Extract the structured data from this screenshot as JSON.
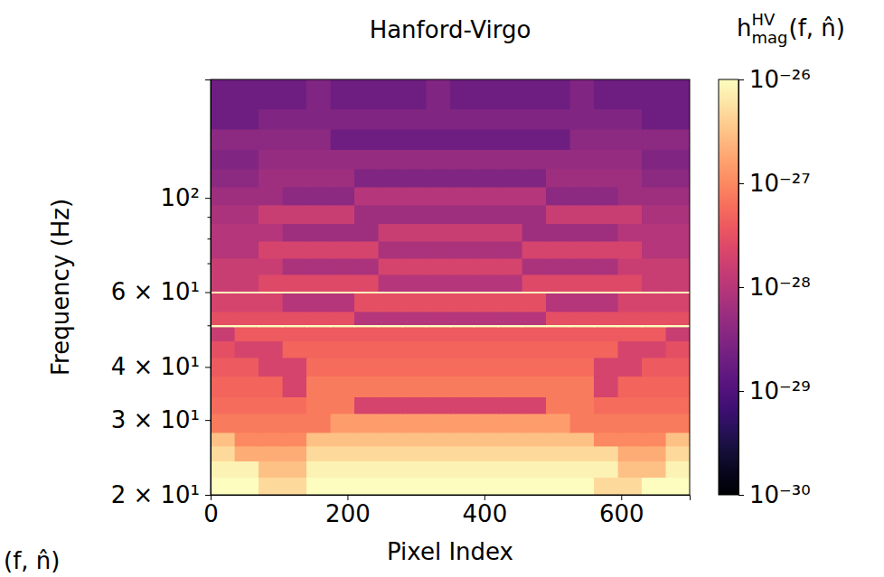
{
  "chart_data": {
    "type": "heatmap",
    "title": "Hanford-Virgo",
    "x_label": "Pixel Index",
    "y_label": "Frequency (Hz)",
    "annotation": "(f, n̂)",
    "log": "y",
    "xlim": [
      0,
      700
    ],
    "ylim": [
      20,
      190
    ],
    "xticks": [
      0,
      200,
      400,
      600
    ],
    "yticks": [
      {
        "value": 20,
        "label": "2 × 10¹"
      },
      {
        "value": 30,
        "label": "3 × 10¹"
      },
      {
        "value": 40,
        "label": "4 × 10¹"
      },
      {
        "value": 60,
        "label": "6 × 10¹"
      },
      {
        "value": 100,
        "label": "10²"
      }
    ],
    "yticks_minor": [
      50,
      70,
      80,
      90
    ],
    "x_edges": [
      0,
      35,
      70,
      105,
      140,
      175,
      210,
      245,
      280,
      315,
      350,
      385,
      420,
      455,
      490,
      525,
      560,
      595,
      630,
      665,
      700
    ],
    "y_edges": [
      20,
      22,
      24,
      26,
      28,
      31,
      34,
      38,
      42,
      46,
      49.7,
      50.3,
      54,
      59.7,
      60.3,
      66,
      72,
      79,
      87,
      96,
      106,
      117,
      130,
      145,
      162,
      190
    ],
    "cells": [
      [
        1e-26,
        1e-26,
        5e-27,
        5e-27,
        1e-26,
        1e-26,
        1e-26,
        1e-26,
        1e-26,
        1e-26,
        1e-26,
        1e-26,
        1e-26,
        1e-26,
        1e-26,
        1e-26,
        5e-27,
        5e-27,
        1e-26,
        1e-26
      ],
      [
        8e-27,
        8e-27,
        3e-27,
        3e-27,
        8e-27,
        8e-27,
        8e-27,
        8e-27,
        8e-27,
        8e-27,
        8e-27,
        8e-27,
        8e-27,
        8e-27,
        8e-27,
        8e-27,
        8e-27,
        3e-27,
        3e-27,
        8e-27
      ],
      [
        5e-27,
        2e-27,
        2e-27,
        2e-27,
        5e-27,
        5e-27,
        5e-27,
        5e-27,
        5e-27,
        5e-27,
        5e-27,
        5e-27,
        5e-27,
        5e-27,
        5e-27,
        5e-27,
        5e-27,
        2e-27,
        2e-27,
        5e-27
      ],
      [
        3e-27,
        1e-27,
        1e-27,
        1e-27,
        3e-27,
        3e-27,
        3e-27,
        3e-27,
        3e-27,
        3e-27,
        3e-27,
        3e-27,
        3e-27,
        3e-27,
        3e-27,
        3e-27,
        1e-27,
        1e-27,
        1e-27,
        3e-27
      ],
      [
        8e-28,
        8e-28,
        8e-28,
        8e-28,
        8e-28,
        1.5e-27,
        1.5e-27,
        1.5e-27,
        1.5e-27,
        1.5e-27,
        1.5e-27,
        1.5e-27,
        1.5e-27,
        1.5e-27,
        1.5e-27,
        8e-28,
        8e-28,
        8e-28,
        8e-28,
        8e-28
      ],
      [
        6e-28,
        6e-28,
        6e-28,
        6e-28,
        8e-28,
        8e-28,
        2e-28,
        2e-28,
        2e-28,
        2e-28,
        2e-28,
        2e-28,
        2e-28,
        2e-28,
        8e-28,
        8e-28,
        6e-28,
        6e-28,
        6e-28,
        6e-28
      ],
      [
        5e-28,
        5e-28,
        5e-28,
        2e-28,
        8e-28,
        8e-28,
        8e-28,
        8e-28,
        8e-28,
        8e-28,
        8e-28,
        8e-28,
        8e-28,
        8e-28,
        8e-28,
        8e-28,
        2e-28,
        5e-28,
        5e-28,
        5e-28
      ],
      [
        4e-28,
        4e-28,
        2e-28,
        2e-28,
        6e-28,
        6e-28,
        6e-28,
        6e-28,
        6e-28,
        6e-28,
        6e-28,
        6e-28,
        6e-28,
        6e-28,
        6e-28,
        6e-28,
        2e-28,
        2e-28,
        4e-28,
        4e-28
      ],
      [
        3e-28,
        2e-28,
        2e-28,
        5e-28,
        5e-28,
        5e-28,
        5e-28,
        5e-28,
        5e-28,
        5e-28,
        5e-28,
        5e-28,
        5e-28,
        5e-28,
        5e-28,
        5e-28,
        5e-28,
        2e-28,
        2e-28,
        3e-28
      ],
      [
        1.5e-28,
        4e-28,
        4e-28,
        4e-28,
        4e-28,
        4e-28,
        4e-28,
        4e-28,
        4e-28,
        4e-28,
        4e-28,
        4e-28,
        4e-28,
        4e-28,
        4e-28,
        4e-28,
        4e-28,
        4e-28,
        4e-28,
        1.5e-28
      ],
      [
        1e-26,
        1e-26,
        1e-26,
        1e-26,
        1e-26,
        1e-26,
        1e-26,
        1e-26,
        1e-26,
        1e-26,
        1e-26,
        1e-26,
        1e-26,
        1e-26,
        1e-26,
        1e-26,
        1e-26,
        1e-26,
        1e-26,
        1e-26
      ],
      [
        3e-28,
        3e-28,
        3e-28,
        3e-28,
        3e-28,
        3e-28,
        1e-28,
        1e-28,
        1e-28,
        1e-28,
        1e-28,
        1e-28,
        1e-28,
        1e-28,
        3e-28,
        3e-28,
        3e-28,
        3e-28,
        3e-28,
        3e-28
      ],
      [
        2e-28,
        2e-28,
        2e-28,
        1e-28,
        1e-28,
        1e-28,
        3e-28,
        3e-28,
        3e-28,
        3e-28,
        3e-28,
        3e-28,
        3e-28,
        3e-28,
        1e-28,
        1e-28,
        1e-28,
        2e-28,
        2e-28,
        2e-28
      ],
      [
        1e-26,
        1e-26,
        1e-26,
        1e-26,
        1e-26,
        1e-26,
        1e-26,
        1e-26,
        1e-26,
        1e-26,
        1e-26,
        1e-26,
        1e-26,
        1e-26,
        1e-26,
        1e-26,
        1e-26,
        1e-26,
        1e-26,
        1e-26
      ],
      [
        1.5e-28,
        1.5e-28,
        2.5e-28,
        2.5e-28,
        2.5e-28,
        2.5e-28,
        2.5e-28,
        1e-28,
        1e-28,
        1e-28,
        1e-28,
        1e-28,
        1e-28,
        2.5e-28,
        2.5e-28,
        2.5e-28,
        2.5e-28,
        2.5e-28,
        1.5e-28,
        1.5e-28
      ],
      [
        1.5e-28,
        1.5e-28,
        1.5e-28,
        8e-29,
        8e-29,
        8e-29,
        8e-29,
        2e-28,
        2e-28,
        2e-28,
        2e-28,
        2e-28,
        2e-28,
        8e-29,
        8e-29,
        8e-29,
        8e-29,
        1.5e-28,
        1.5e-28,
        1.5e-28
      ],
      [
        1e-28,
        1e-28,
        2e-28,
        2e-28,
        2e-28,
        2e-28,
        2e-28,
        8e-29,
        8e-29,
        8e-29,
        8e-29,
        8e-29,
        8e-29,
        2e-28,
        2e-28,
        2e-28,
        2e-28,
        2e-28,
        1e-28,
        1e-28
      ],
      [
        1e-28,
        1e-28,
        1e-28,
        6e-29,
        6e-29,
        6e-29,
        6e-29,
        1.5e-28,
        1.5e-28,
        1.5e-28,
        1.5e-28,
        1.5e-28,
        1.5e-28,
        6e-29,
        6e-29,
        6e-29,
        6e-29,
        1e-28,
        1e-28,
        1e-28
      ],
      [
        8e-29,
        8e-29,
        1.5e-28,
        1.5e-28,
        1.5e-28,
        1.5e-28,
        6e-29,
        6e-29,
        6e-29,
        6e-29,
        6e-29,
        6e-29,
        6e-29,
        6e-29,
        1.5e-28,
        1.5e-28,
        1.5e-28,
        1.5e-28,
        8e-29,
        8e-29
      ],
      [
        6e-29,
        6e-29,
        6e-29,
        4e-29,
        4e-29,
        4e-29,
        1e-28,
        1e-28,
        1e-28,
        1e-28,
        1e-28,
        1e-28,
        1e-28,
        1e-28,
        4e-29,
        4e-29,
        4e-29,
        6e-29,
        6e-29,
        6e-29
      ],
      [
        4e-29,
        4e-29,
        6e-29,
        6e-29,
        6e-29,
        6e-29,
        3e-29,
        3e-29,
        3e-29,
        3e-29,
        3e-29,
        3e-29,
        3e-29,
        3e-29,
        6e-29,
        6e-29,
        6e-29,
        6e-29,
        4e-29,
        4e-29
      ],
      [
        3e-29,
        3e-29,
        5e-29,
        5e-29,
        5e-29,
        5e-29,
        5e-29,
        5e-29,
        5e-29,
        5e-29,
        5e-29,
        5e-29,
        5e-29,
        5e-29,
        5e-29,
        5e-29,
        5e-29,
        5e-29,
        3e-29,
        3e-29
      ],
      [
        4e-29,
        4e-29,
        4e-29,
        4e-29,
        4e-29,
        2e-29,
        2e-29,
        2e-29,
        2e-29,
        2e-29,
        2e-29,
        2e-29,
        2e-29,
        2e-29,
        2e-29,
        4e-29,
        4e-29,
        4e-29,
        4e-29,
        4e-29
      ],
      [
        2e-29,
        2e-29,
        3e-29,
        3e-29,
        3e-29,
        3e-29,
        3e-29,
        3e-29,
        3e-29,
        3e-29,
        3e-29,
        3e-29,
        3e-29,
        3e-29,
        3e-29,
        3e-29,
        3e-29,
        3e-29,
        2e-29,
        2e-29
      ],
      [
        2e-29,
        2e-29,
        2e-29,
        2e-29,
        3e-29,
        2e-29,
        2e-29,
        2e-29,
        2e-29,
        3e-29,
        2e-29,
        2e-29,
        2e-29,
        2e-29,
        2e-29,
        3e-29,
        2e-29,
        2e-29,
        2e-29,
        2e-29
      ]
    ],
    "colorbar": {
      "range": [
        1e-30,
        1e-26
      ],
      "ticks": [
        {
          "value": 1e-30,
          "label": "10⁻³⁰"
        },
        {
          "value": 1e-29,
          "label": "10⁻²⁹"
        },
        {
          "value": 1e-28,
          "label": "10⁻²⁸"
        },
        {
          "value": 1e-27,
          "label": "10⁻²⁷"
        },
        {
          "value": 1e-26,
          "label": "10⁻²⁶"
        }
      ],
      "title": {
        "base": "h",
        "sup": "HV",
        "sub": "mag",
        "args": "(f, n̂)"
      }
    }
  }
}
